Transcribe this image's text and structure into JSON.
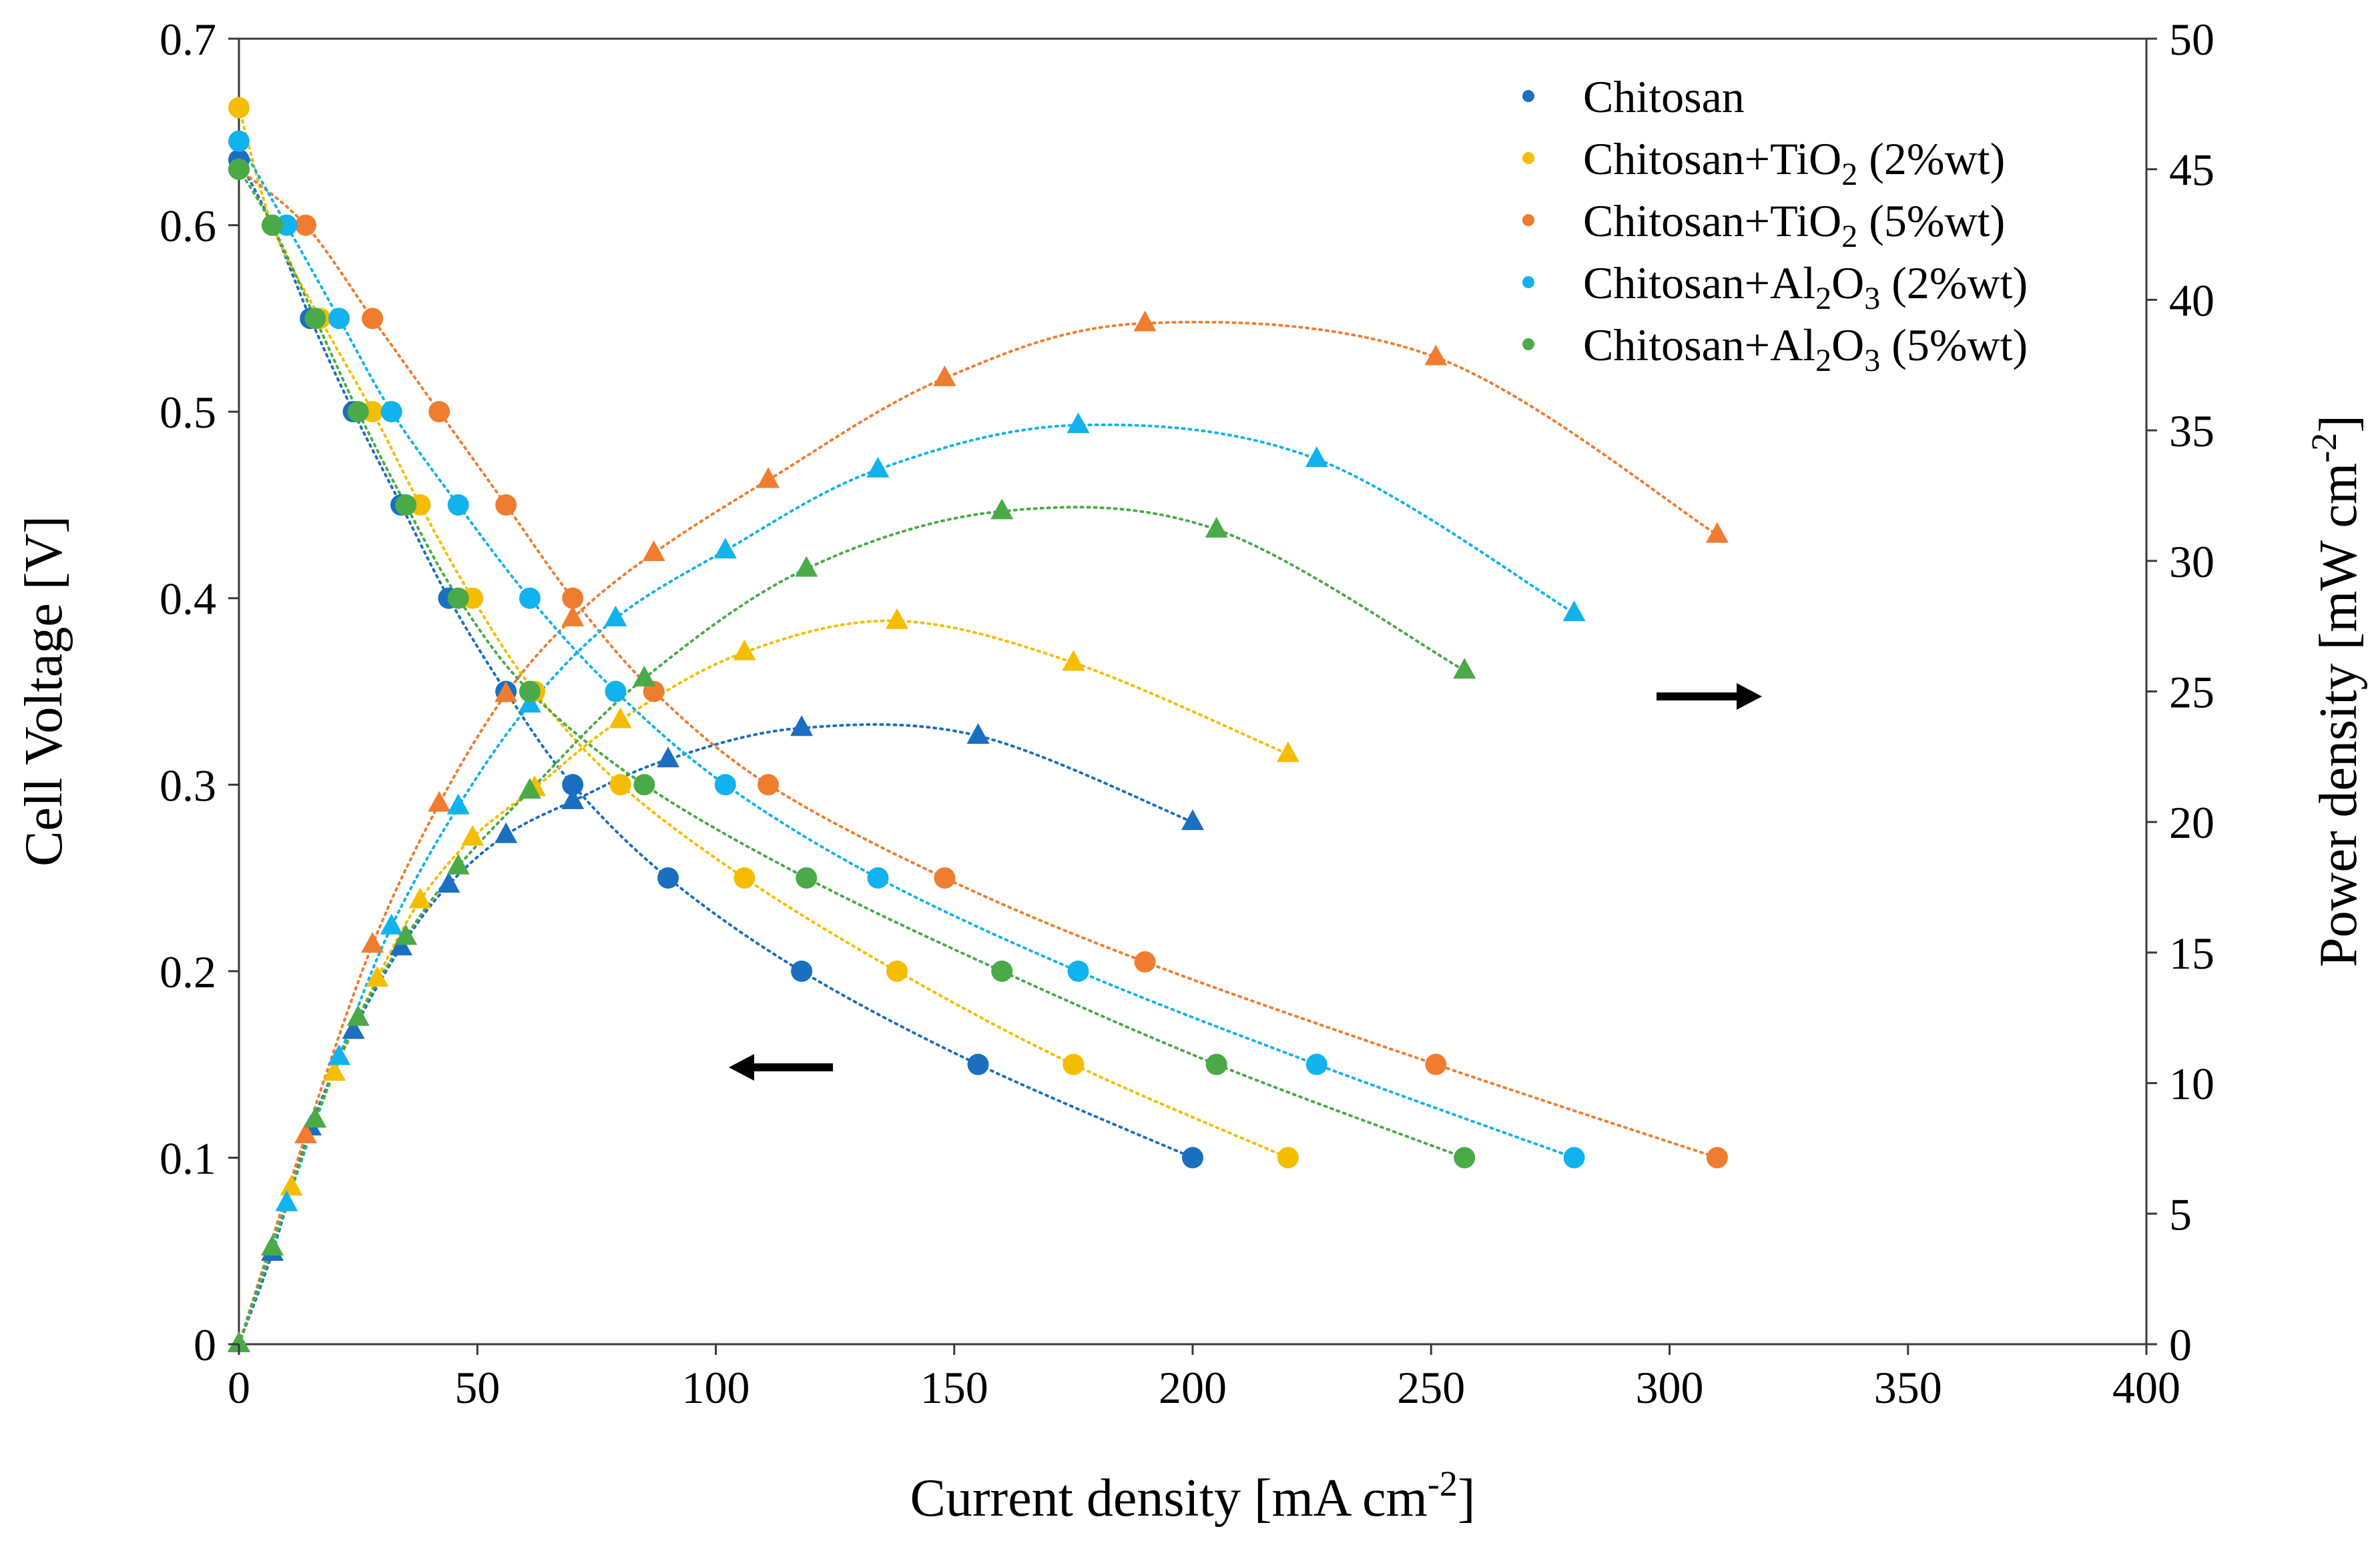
{
  "chart_data": {
    "type": "scatter",
    "title": "",
    "xlabel": "Current density [mA cm",
    "xlabel_sup": "-2",
    "xlabel_end": "]",
    "ylabel": "Cell Voltage [V]",
    "y2label": "Power density [mW cm",
    "y2label_sup": "-2",
    "y2label_end": "]",
    "xlim": [
      0,
      400
    ],
    "ylim": [
      0,
      0.7
    ],
    "y2lim": [
      0,
      50
    ],
    "xticks": [
      "0",
      "50",
      "100",
      "150",
      "200",
      "250",
      "300",
      "350",
      "400"
    ],
    "yticks": [
      "0",
      "0.1",
      "0.2",
      "0.3",
      "0.4",
      "0.5",
      "0.6",
      "0.7"
    ],
    "y2ticks": [
      "0",
      "5",
      "10",
      "15",
      "20",
      "25",
      "30",
      "35",
      "40",
      "45",
      "50"
    ],
    "legend_position": "top-right",
    "annotations": [
      {
        "type": "arrow",
        "direction": "left",
        "meaning": "voltage curves use left axis"
      },
      {
        "type": "arrow",
        "direction": "right",
        "meaning": "power curves use right axis"
      }
    ],
    "series": [
      {
        "name": "Chitosan",
        "legend": [
          "Chitosan",
          "",
          ""
        ],
        "color": "#1a6fc0",
        "voltage": [
          [
            0,
            0.635
          ],
          [
            7,
            0.6
          ],
          [
            15,
            0.55
          ],
          [
            24,
            0.5
          ],
          [
            34,
            0.45
          ],
          [
            44,
            0.4
          ],
          [
            56,
            0.35
          ],
          [
            70,
            0.3
          ],
          [
            90,
            0.25
          ],
          [
            118,
            0.2
          ],
          [
            155,
            0.15
          ],
          [
            200,
            0.1
          ]
        ],
        "power": [
          [
            0,
            0
          ],
          [
            7,
            3.5
          ],
          [
            15,
            8.3
          ],
          [
            24,
            12
          ],
          [
            34,
            15.2
          ],
          [
            44,
            17.6
          ],
          [
            56,
            19.5
          ],
          [
            70,
            20.8
          ],
          [
            90,
            22.4
          ],
          [
            118,
            23.6
          ],
          [
            155,
            23.3
          ],
          [
            200,
            20
          ]
        ]
      },
      {
        "name": "Chitosan+TiO2 (2%wt)",
        "legend": [
          "Chitosan+TiO",
          "2",
          " (2%wt)"
        ],
        "color": "#f5bd00",
        "voltage": [
          [
            0,
            0.663
          ],
          [
            7,
            0.6
          ],
          [
            17,
            0.55
          ],
          [
            28,
            0.5
          ],
          [
            38,
            0.45
          ],
          [
            49,
            0.4
          ],
          [
            62,
            0.35
          ],
          [
            80,
            0.3
          ],
          [
            106,
            0.25
          ],
          [
            138,
            0.2
          ],
          [
            175,
            0.15
          ],
          [
            220,
            0.1
          ]
        ],
        "power": [
          [
            0,
            0
          ],
          [
            11,
            6
          ],
          [
            20,
            10.4
          ],
          [
            29,
            14
          ],
          [
            38,
            17
          ],
          [
            49,
            19.4
          ],
          [
            62,
            21.3
          ],
          [
            80,
            23.9
          ],
          [
            106,
            26.5
          ],
          [
            138,
            27.7
          ],
          [
            175,
            26.1
          ],
          [
            220,
            22.6
          ]
        ]
      },
      {
        "name": "Chitosan+TiO2 (5%wt)",
        "legend": [
          "Chitosan+TiO",
          "2",
          " (5%wt)"
        ],
        "color": "#f07c2f",
        "voltage": [
          [
            0,
            0.63
          ],
          [
            14,
            0.6
          ],
          [
            28,
            0.55
          ],
          [
            42,
            0.5
          ],
          [
            56,
            0.45
          ],
          [
            70,
            0.4
          ],
          [
            87,
            0.35
          ],
          [
            111,
            0.3
          ],
          [
            148,
            0.25
          ],
          [
            190,
            0.205
          ],
          [
            251,
            0.15
          ],
          [
            310,
            0.1
          ]
        ],
        "power": [
          [
            0,
            0
          ],
          [
            14,
            8
          ],
          [
            28,
            15.3
          ],
          [
            42,
            20.7
          ],
          [
            56,
            24.9
          ],
          [
            70,
            27.8
          ],
          [
            87,
            30.3
          ],
          [
            111,
            33.1
          ],
          [
            148,
            37
          ],
          [
            190,
            39.1
          ],
          [
            251,
            37.8
          ],
          [
            310,
            31
          ]
        ]
      },
      {
        "name": "Chitosan+Al2O3 (2%wt)",
        "legend": [
          "Chitosan+Al",
          "2",
          "O",
          "3",
          " (2%wt)"
        ],
        "color": "#11b2ee",
        "voltage": [
          [
            0,
            0.645
          ],
          [
            10,
            0.6
          ],
          [
            21,
            0.55
          ],
          [
            32,
            0.5
          ],
          [
            46,
            0.45
          ],
          [
            61,
            0.4
          ],
          [
            79,
            0.35
          ],
          [
            102,
            0.3
          ],
          [
            134,
            0.25
          ],
          [
            176,
            0.2
          ],
          [
            226,
            0.15
          ],
          [
            280,
            0.1
          ]
        ],
        "power": [
          [
            0,
            0
          ],
          [
            10,
            5.4
          ],
          [
            21,
            11
          ],
          [
            32,
            16
          ],
          [
            46,
            20.6
          ],
          [
            61,
            24.5
          ],
          [
            79,
            27.8
          ],
          [
            102,
            30.4
          ],
          [
            134,
            33.5
          ],
          [
            176,
            35.2
          ],
          [
            226,
            33.9
          ],
          [
            280,
            28
          ]
        ]
      },
      {
        "name": "Chitosan+Al2O3 (5%wt)",
        "legend": [
          "Chitosan+Al",
          "2",
          "O",
          "3",
          " (5%wt)"
        ],
        "color": "#4aaa48",
        "voltage": [
          [
            0,
            0.63
          ],
          [
            7,
            0.6
          ],
          [
            16,
            0.55
          ],
          [
            25,
            0.5
          ],
          [
            35,
            0.45
          ],
          [
            46,
            0.4
          ],
          [
            61,
            0.35
          ],
          [
            85,
            0.3
          ],
          [
            119,
            0.25
          ],
          [
            160,
            0.2
          ],
          [
            205,
            0.15
          ],
          [
            257,
            0.1
          ]
        ],
        "power": [
          [
            0,
            0
          ],
          [
            7,
            3.7
          ],
          [
            16,
            8.6
          ],
          [
            25,
            12.5
          ],
          [
            35,
            15.6
          ],
          [
            46,
            18.3
          ],
          [
            61,
            21.2
          ],
          [
            85,
            25.5
          ],
          [
            119,
            29.7
          ],
          [
            160,
            31.9
          ],
          [
            205,
            31.2
          ],
          [
            257,
            25.8
          ]
        ]
      }
    ]
  }
}
